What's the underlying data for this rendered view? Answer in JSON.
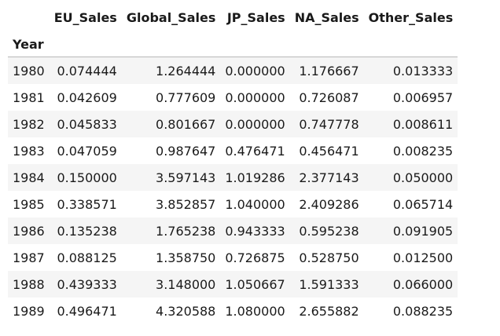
{
  "table": {
    "index_name": "Year",
    "columns": [
      "EU_Sales",
      "Global_Sales",
      "JP_Sales",
      "NA_Sales",
      "Other_Sales"
    ],
    "rows": [
      {
        "year": "1980",
        "values": [
          "0.074444",
          "1.264444",
          "0.000000",
          "1.176667",
          "0.013333"
        ]
      },
      {
        "year": "1981",
        "values": [
          "0.042609",
          "0.777609",
          "0.000000",
          "0.726087",
          "0.006957"
        ]
      },
      {
        "year": "1982",
        "values": [
          "0.045833",
          "0.801667",
          "0.000000",
          "0.747778",
          "0.008611"
        ]
      },
      {
        "year": "1983",
        "values": [
          "0.047059",
          "0.987647",
          "0.476471",
          "0.456471",
          "0.008235"
        ]
      },
      {
        "year": "1984",
        "values": [
          "0.150000",
          "3.597143",
          "1.019286",
          "2.377143",
          "0.050000"
        ]
      },
      {
        "year": "1985",
        "values": [
          "0.338571",
          "3.852857",
          "1.040000",
          "2.409286",
          "0.065714"
        ]
      },
      {
        "year": "1986",
        "values": [
          "0.135238",
          "1.765238",
          "0.943333",
          "0.595238",
          "0.091905"
        ]
      },
      {
        "year": "1987",
        "values": [
          "0.088125",
          "1.358750",
          "0.726875",
          "0.528750",
          "0.012500"
        ]
      },
      {
        "year": "1988",
        "values": [
          "0.439333",
          "3.148000",
          "1.050667",
          "1.591333",
          "0.066000"
        ]
      },
      {
        "year": "1989",
        "values": [
          "0.496471",
          "4.320588",
          "1.080000",
          "2.655882",
          "0.088235"
        ]
      }
    ]
  }
}
